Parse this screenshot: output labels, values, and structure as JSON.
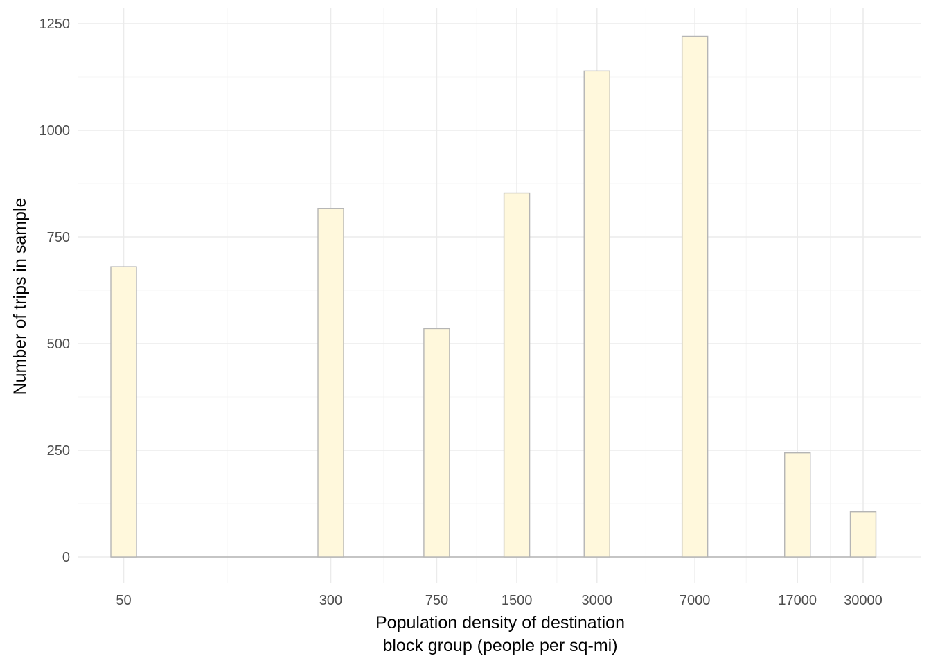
{
  "chart_data": {
    "type": "bar",
    "title": "",
    "xlabel_lines": [
      "Population density of destination",
      "block group (people per sq-mi)"
    ],
    "ylabel": "Number of trips in sample",
    "x_scale": "log",
    "x_ticks": [
      {
        "value": 50,
        "label": "50"
      },
      {
        "value": 300,
        "label": "300"
      },
      {
        "value": 750,
        "label": "750"
      },
      {
        "value": 1500,
        "label": "1500"
      },
      {
        "value": 3000,
        "label": "3000"
      },
      {
        "value": 7000,
        "label": "7000"
      },
      {
        "value": 17000,
        "label": "17000"
      },
      {
        "value": 30000,
        "label": "30000"
      }
    ],
    "y_ticks": [
      {
        "value": 0,
        "label": "0"
      },
      {
        "value": 250,
        "label": "250"
      },
      {
        "value": 500,
        "label": "500"
      },
      {
        "value": 750,
        "label": "750"
      },
      {
        "value": 1000,
        "label": "1000"
      },
      {
        "value": 1250,
        "label": "1250"
      }
    ],
    "ylim": [
      0,
      1250
    ],
    "grid": true,
    "bars": [
      {
        "x": 50,
        "y": 680
      },
      {
        "x": 300,
        "y": 817
      },
      {
        "x": 750,
        "y": 535
      },
      {
        "x": 1500,
        "y": 853
      },
      {
        "x": 3000,
        "y": 1139
      },
      {
        "x": 7000,
        "y": 1220
      },
      {
        "x": 17000,
        "y": 244
      },
      {
        "x": 30000,
        "y": 106
      }
    ],
    "colors": {
      "bar_fill": "#fff8dc",
      "bar_stroke": "#b5b5b5",
      "grid_major": "#ebebeb",
      "grid_minor": "#f4f4f4",
      "baseline": "#b5b5b5"
    }
  }
}
